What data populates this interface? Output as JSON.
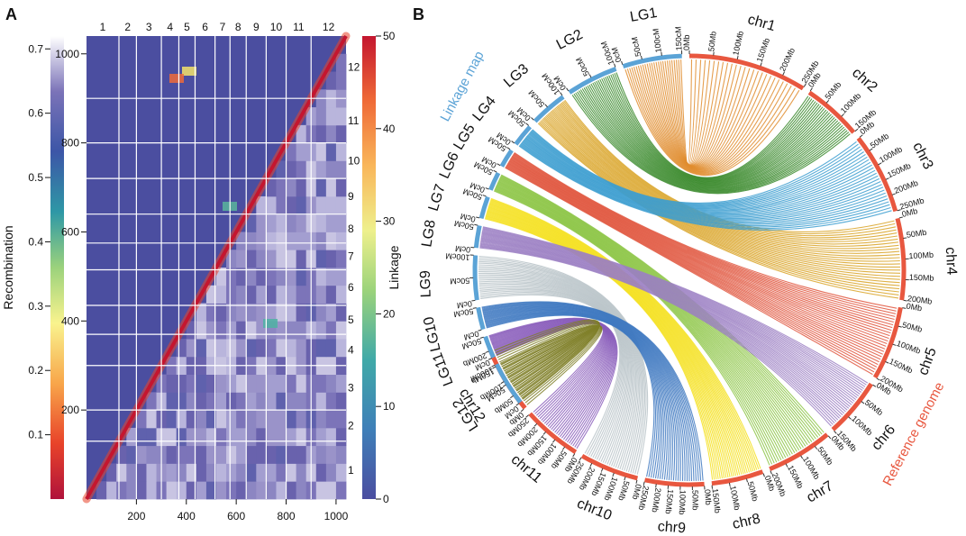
{
  "panel_a": {
    "label": "A",
    "recombination_axis": {
      "title": "Recombination",
      "ticks": [
        "0.1",
        "0.2",
        "0.3",
        "0.4",
        "0.5",
        "0.6",
        "0.7"
      ]
    },
    "linkage_axis": {
      "title": "Linkage",
      "ticks": [
        "0",
        "10",
        "20",
        "30",
        "40",
        "50"
      ]
    },
    "matrix_y_ticks": [
      "200",
      "400",
      "600",
      "800",
      "1000"
    ],
    "matrix_x_ticks": [
      "200",
      "400",
      "600",
      "800",
      "1000"
    ],
    "chr_top": [
      "1",
      "2",
      "3",
      "4",
      "5",
      "6",
      "7",
      "8",
      "9",
      "10",
      "11",
      "12"
    ],
    "chr_right": [
      "12",
      "11",
      "10",
      "9",
      "8",
      "7",
      "6",
      "5",
      "4",
      "3",
      "2",
      "1"
    ]
  },
  "panel_b": {
    "label": "B",
    "left_title": "Linkage map",
    "right_title": "Reference genome",
    "lg_groups": [
      {
        "name": "LG1",
        "ticks": [
          "0cM",
          "50cM",
          "100cM",
          "150cM"
        ]
      },
      {
        "name": "LG2",
        "ticks": [
          "0cM",
          "50cM",
          "100cM"
        ]
      },
      {
        "name": "LG3",
        "ticks": [
          "0cM",
          "50cM",
          "100cM"
        ]
      },
      {
        "name": "LG4",
        "ticks": [
          "0cM",
          "50cM"
        ]
      },
      {
        "name": "LG5",
        "ticks": [
          "0cM",
          "50cM"
        ]
      },
      {
        "name": "LG6",
        "ticks": [
          "0cM",
          "50cM"
        ]
      },
      {
        "name": "LG7",
        "ticks": [
          "0cM",
          "50cM"
        ]
      },
      {
        "name": "LG8",
        "ticks": [
          "0cM",
          "50cM"
        ]
      },
      {
        "name": "LG9",
        "ticks": [
          "0cM",
          "50cM",
          "100cM"
        ]
      },
      {
        "name": "LG10",
        "ticks": [
          "0cM",
          "50cM"
        ]
      },
      {
        "name": "LG11",
        "ticks": [
          "0cM",
          "50cM"
        ]
      },
      {
        "name": "LG12",
        "ticks": [
          "0cM",
          "50cM",
          "100cM"
        ]
      }
    ],
    "chr_groups": [
      {
        "name": "chr1",
        "ticks": [
          "0Mb",
          "50Mb",
          "100Mb",
          "150Mb",
          "200Mb",
          "250Mb"
        ]
      },
      {
        "name": "chr2",
        "ticks": [
          "0Mb",
          "50Mb",
          "100Mb",
          "150Mb"
        ]
      },
      {
        "name": "chr3",
        "ticks": [
          "0Mb",
          "50Mb",
          "100Mb",
          "150Mb",
          "200Mb",
          "250Mb"
        ]
      },
      {
        "name": "chr4",
        "ticks": [
          "0Mb",
          "50Mb",
          "100Mb",
          "150Mb",
          "200Mb"
        ]
      },
      {
        "name": "chr5",
        "ticks": [
          "0Mb",
          "50Mb",
          "100Mb",
          "150Mb",
          "200Mb"
        ]
      },
      {
        "name": "chr6",
        "ticks": [
          "0Mb",
          "50Mb",
          "100Mb",
          "150Mb"
        ]
      },
      {
        "name": "chr7",
        "ticks": [
          "0Mb",
          "50Mb",
          "100Mb",
          "150Mb",
          "200Mb"
        ]
      },
      {
        "name": "chr8",
        "ticks": [
          "0Mb",
          "50Mb",
          "100Mb",
          "150Mb"
        ]
      },
      {
        "name": "chr9",
        "ticks": [
          "0Mb",
          "50Mb",
          "100Mb",
          "150Mb",
          "200Mb",
          "250Mb"
        ]
      },
      {
        "name": "chr10",
        "ticks": [
          "0Mb",
          "50Mb",
          "100Mb",
          "150Mb",
          "200Mb",
          "250Mb"
        ]
      },
      {
        "name": "chr11",
        "ticks": [
          "0Mb",
          "50Mb",
          "100Mb",
          "150Mb",
          "200Mb",
          "250Mb"
        ]
      },
      {
        "name": "chr12",
        "ticks": [
          "0Mb",
          "50Mb",
          "100Mb",
          "150Mb",
          "200Mb"
        ]
      }
    ],
    "link_colors": [
      "#7f7f28",
      "#e08d2f",
      "#3a8a2b",
      "#3c9dd0",
      "#e1563e",
      "#d9a326",
      "#f4e01f",
      "#8dc646",
      "#9b7fc3",
      "#b8c3c8",
      "#3f79c1",
      "#8a5dbb"
    ],
    "colors": {
      "linkage_map": "#5ba3d6",
      "reference_genome": "#e8573f"
    }
  }
}
